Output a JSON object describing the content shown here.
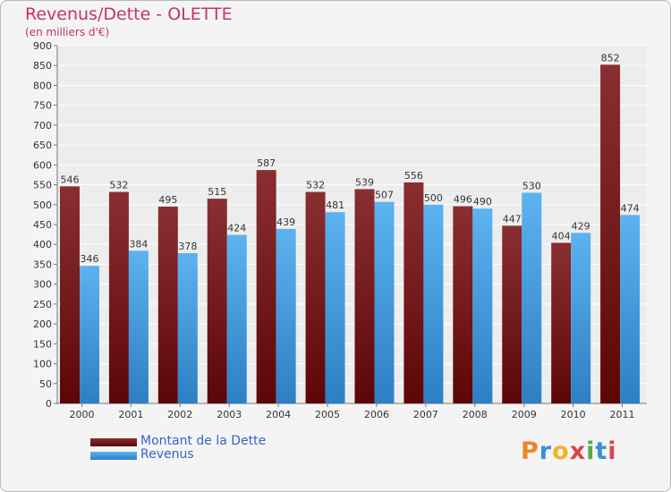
{
  "chart_data": {
    "type": "bar",
    "title": "Revenus/Dette - OLETTE",
    "subtitle": "(en milliers d'€)",
    "categories": [
      "2000",
      "2001",
      "2002",
      "2003",
      "2004",
      "2005",
      "2006",
      "2007",
      "2008",
      "2009",
      "2010",
      "2011"
    ],
    "series": [
      {
        "name": "Montant de la Dette",
        "values": [
          546,
          532,
          495,
          515,
          587,
          532,
          539,
          556,
          496,
          447,
          404,
          852
        ],
        "color": "#7d1f22"
      },
      {
        "name": "Revenus",
        "values": [
          346,
          384,
          378,
          424,
          439,
          481,
          507,
          500,
          490,
          530,
          429,
          474
        ],
        "color": "#4ba3e6"
      }
    ],
    "ylim": [
      0,
      900
    ],
    "yticks": [
      0,
      50,
      100,
      150,
      200,
      250,
      300,
      350,
      400,
      450,
      500,
      550,
      600,
      650,
      700,
      750,
      800,
      850,
      900
    ],
    "grid": true,
    "legend": "bottom-left"
  },
  "branding": {
    "letters": [
      "P",
      "r",
      "o",
      "x",
      "i",
      "t",
      "i"
    ],
    "colors": [
      "#e8862a",
      "#3b8fd6",
      "#f0b323",
      "#d9434f",
      "#5aa845",
      "#3b8fd6",
      "#d9434f"
    ]
  }
}
